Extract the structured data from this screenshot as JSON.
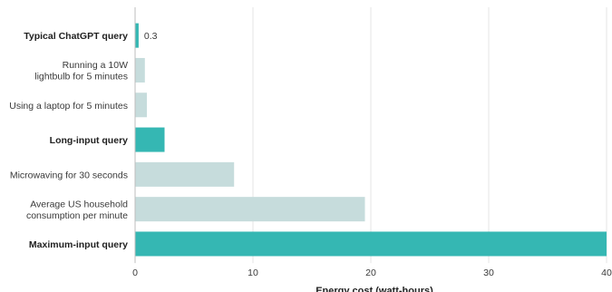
{
  "chart_data": {
    "type": "bar",
    "orientation": "horizontal",
    "categories": [
      [
        "Typical ChatGPT query"
      ],
      [
        "Running a 10W",
        "lightbulb for 5 minutes"
      ],
      [
        "Using a laptop for 5 minutes"
      ],
      [
        "Long-input query"
      ],
      [
        "Microwaving for 30 seconds"
      ],
      [
        "Average US household",
        "consumption per minute"
      ],
      [
        "Maximum-input query"
      ]
    ],
    "values": [
      0.3,
      0.83,
      1.0,
      2.5,
      8.4,
      19.5,
      40
    ],
    "highlighted": [
      true,
      false,
      false,
      true,
      false,
      false,
      true
    ],
    "data_labels": [
      "0.3",
      "",
      "",
      "",
      "",
      "",
      ""
    ],
    "xlabel": "Energy cost (watt-hours)",
    "xlim": [
      0,
      40
    ],
    "xticks": [
      0,
      10,
      20,
      30,
      40
    ],
    "grid": "vertical",
    "colors": {
      "highlight": "#35b7b3",
      "muted": "#c6dcdc"
    }
  }
}
